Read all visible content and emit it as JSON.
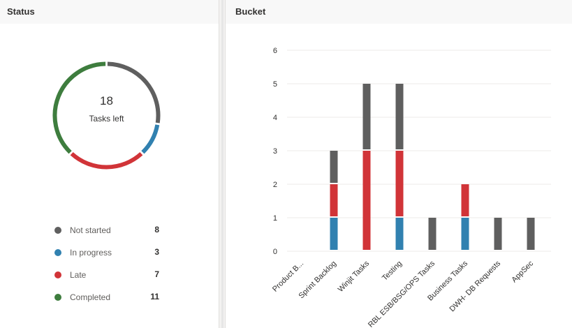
{
  "status": {
    "title": "Status",
    "total": "18",
    "total_label": "Tasks left",
    "legend": [
      {
        "label": "Not started",
        "count": "8",
        "color": "#5f5f5f"
      },
      {
        "label": "In progress",
        "count": "3",
        "color": "#3181b0"
      },
      {
        "label": "Late",
        "count": "7",
        "color": "#d13438"
      },
      {
        "label": "Completed",
        "count": "11",
        "color": "#3e7d3e"
      }
    ]
  },
  "bucket": {
    "title": "Bucket"
  },
  "chart_data": {
    "type": "bar",
    "stacked": true,
    "ylim": [
      0,
      6
    ],
    "yticks": [
      "0",
      "1",
      "2",
      "3",
      "4",
      "5",
      "6"
    ],
    "grid": true,
    "categories": [
      "Product B...",
      "Sprint Backlog",
      "Winjit Tasks",
      "Testing",
      "RBL ESB/BSG/OPS Tasks",
      "Business Tasks",
      "DWH- DB Requests",
      "AppSec"
    ],
    "series": [
      {
        "name": "In progress",
        "color": "#3181b0",
        "values": [
          0,
          1,
          0,
          1,
          0,
          1,
          0,
          0
        ]
      },
      {
        "name": "Late",
        "color": "#d13438",
        "values": [
          0,
          1,
          3,
          2,
          0,
          1,
          0,
          0
        ]
      },
      {
        "name": "Not started",
        "color": "#5f5f5f",
        "values": [
          0,
          1,
          2,
          2,
          1,
          0,
          1,
          1
        ]
      }
    ]
  }
}
